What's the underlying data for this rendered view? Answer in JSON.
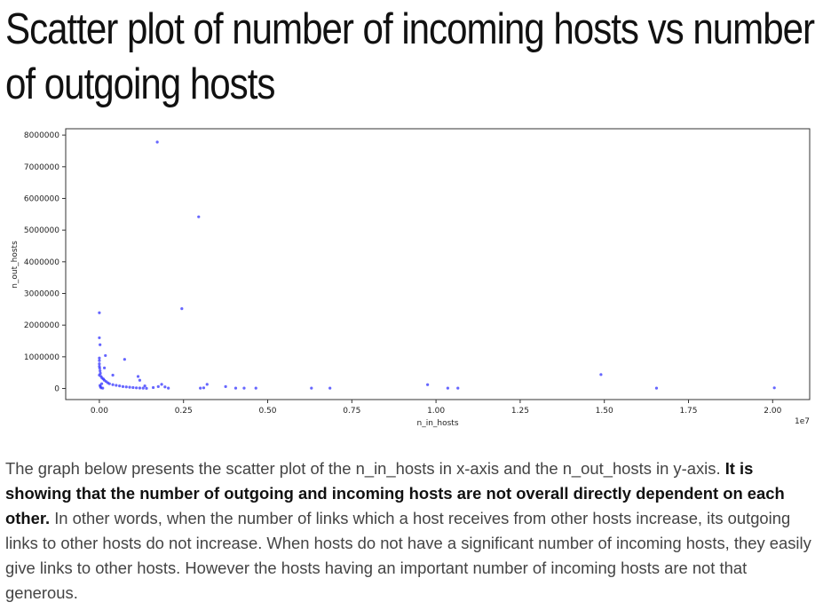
{
  "page": {
    "title": "Scatter plot of number of incoming hosts vs number of outgoing hosts"
  },
  "paragraph": {
    "intro": "The graph below presents the scatter plot of the n_in_hosts in x-axis and the n_out_hosts in y-axis. ",
    "emphasis": "It is showing that the number of outgoing and incoming hosts are not overall directly dependent on each other.",
    "rest": " In other words, when the number of links which a host receives from other hosts increase, its outgoing links to other hosts do not increase. When hosts do not have a significant number of incoming hosts, they easily give links to other hosts. However the hosts having an important number of incoming hosts are not that generous."
  },
  "colors": {
    "points": "#3333ff",
    "axes": "#333333"
  },
  "chart_data": {
    "type": "scatter",
    "title": "",
    "xlabel": "n_in_hosts",
    "ylabel": "n_out_hosts",
    "x_offset_label": "1e7",
    "xlim": [
      -0.1,
      2.11
    ],
    "ylim": [
      -350000,
      8200000
    ],
    "xticks": [
      0.0,
      0.25,
      0.5,
      0.75,
      1.0,
      1.25,
      1.5,
      1.75,
      2.0
    ],
    "xtick_labels": [
      "0.00",
      "0.25",
      "0.50",
      "0.75",
      "1.00",
      "1.25",
      "1.50",
      "1.75",
      "2.00"
    ],
    "yticks": [
      0,
      1000000,
      2000000,
      3000000,
      4000000,
      5000000,
      6000000,
      7000000,
      8000000
    ],
    "ytick_labels": [
      "0",
      "1000000",
      "2000000",
      "3000000",
      "4000000",
      "5000000",
      "6000000",
      "7000000",
      "8000000"
    ],
    "grid": false,
    "legend": null,
    "series": [
      {
        "x": [
          0.172,
          0.295,
          0.245,
          0.0,
          0.0,
          0.002,
          0.0,
          0.075,
          0.018,
          0.0,
          0.0,
          0.0,
          0.001,
          0.002,
          0.003,
          0.0,
          0.005,
          0.008,
          0.012,
          0.015,
          0.02,
          0.025,
          0.03,
          0.04,
          0.05,
          0.06,
          0.07,
          0.08,
          0.09,
          0.1,
          0.11,
          0.12,
          0.13,
          0.14,
          0.015,
          0.04,
          0.115,
          0.12,
          0.135,
          0.16,
          0.175,
          0.185,
          0.195,
          0.205,
          0.3,
          0.31,
          0.32,
          0.375,
          0.405,
          0.43,
          0.465,
          0.63,
          0.685,
          0.975,
          1.035,
          1.065,
          1.49,
          1.655,
          2.005,
          0.005,
          0.003,
          0.002,
          0.007,
          0.01
        ],
        "y": [
          7780000,
          5420000,
          2520000,
          2390000,
          1600000,
          1380000,
          960000,
          920000,
          1040000,
          880000,
          780000,
          700000,
          640000,
          560000,
          480000,
          420000,
          380000,
          330000,
          300000,
          260000,
          220000,
          180000,
          150000,
          120000,
          100000,
          80000,
          60000,
          50000,
          40000,
          30000,
          20000,
          15000,
          10000,
          5000,
          650000,
          420000,
          380000,
          260000,
          80000,
          30000,
          60000,
          130000,
          50000,
          10000,
          10000,
          20000,
          130000,
          60000,
          10000,
          10000,
          10000,
          10000,
          10000,
          120000,
          10000,
          10000,
          440000,
          10000,
          20000,
          20000,
          60000,
          100000,
          150000,
          10000
        ]
      }
    ]
  }
}
